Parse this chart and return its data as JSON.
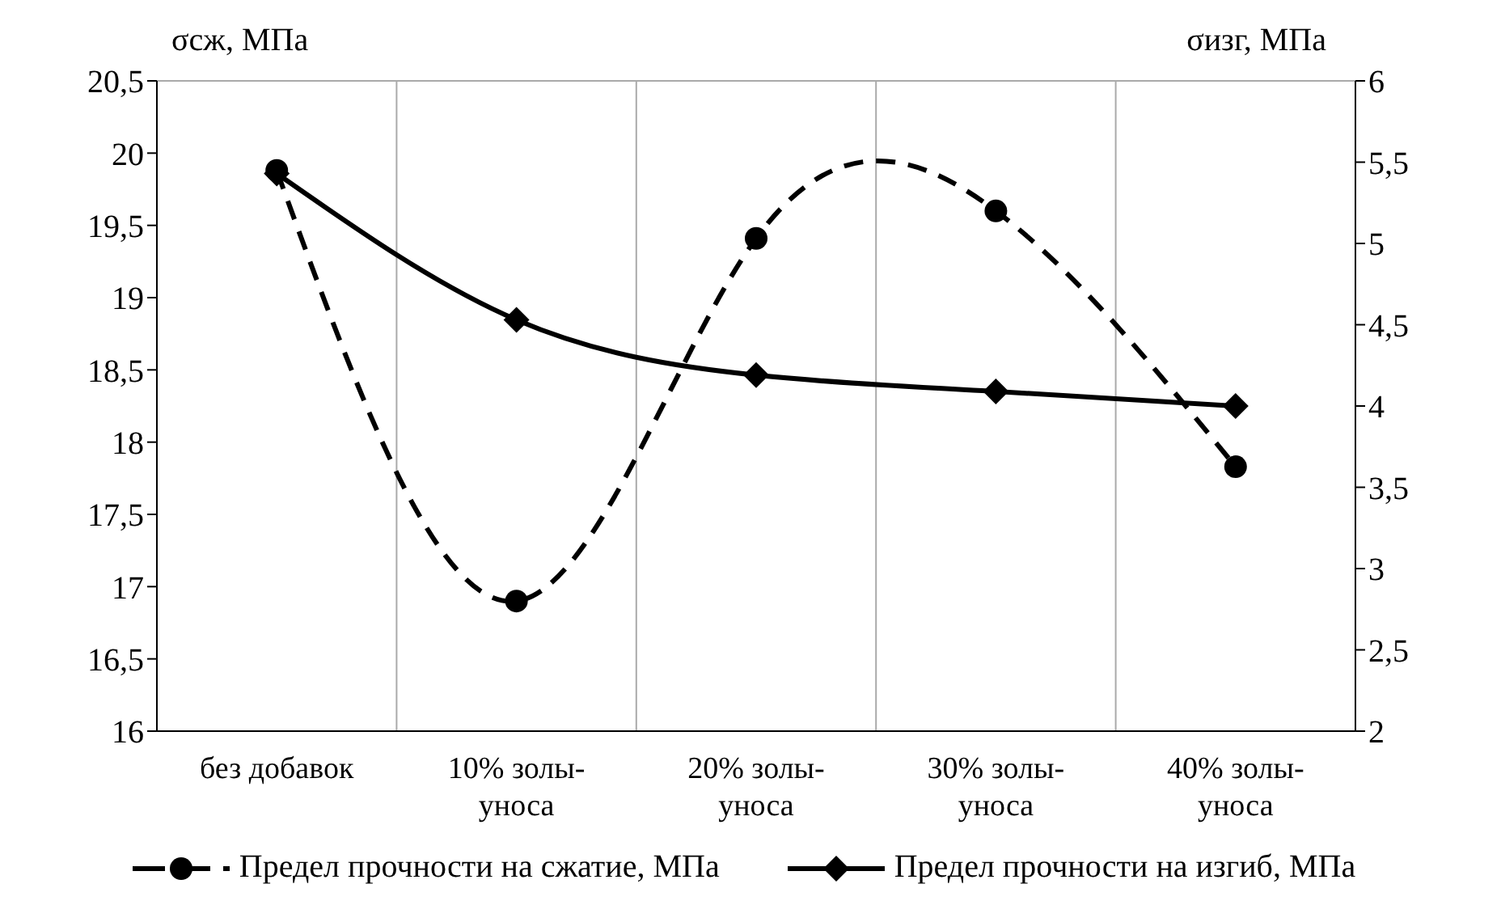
{
  "chart_data": {
    "type": "line",
    "ylabel": "σсж, МПа",
    "y2label": "σизг, МПа",
    "categories": [
      "без добавок",
      "10% золы-уноса",
      "20% золы-уноса",
      "30% золы-уноса",
      "40% золы-уноса"
    ],
    "series": [
      {
        "name": "Предел прочности на сжатие, МПа",
        "color": "#000000",
        "values": [
          19.88,
          16.9,
          19.41,
          19.6,
          17.83
        ],
        "line_style": "dashed",
        "marker": "circle"
      },
      {
        "name": "Предел прочности на изгиб, МПа",
        "color": "#000000",
        "values": [
          5.43,
          4.53,
          4.19,
          4.09,
          4.0
        ],
        "line_style": "solid",
        "marker": "diamond",
        "axis": "y2"
      }
    ],
    "ylim": [
      16,
      20.5
    ],
    "yticks": [
      {
        "value": 16,
        "label": "16"
      },
      {
        "value": 16.5,
        "label": "16,5"
      },
      {
        "value": 17,
        "label": "17"
      },
      {
        "value": 17.5,
        "label": "17,5"
      },
      {
        "value": 18,
        "label": "18"
      },
      {
        "value": 18.5,
        "label": "18,5"
      },
      {
        "value": 19,
        "label": "19"
      },
      {
        "value": 19.5,
        "label": "19,5"
      },
      {
        "value": 20,
        "label": "20"
      },
      {
        "value": 20.5,
        "label": "20,5"
      }
    ],
    "y2lim": [
      2,
      6
    ],
    "y2ticks": [
      {
        "value": 2,
        "label": "2"
      },
      {
        "value": 2.5,
        "label": "2,5"
      },
      {
        "value": 3,
        "label": "3"
      },
      {
        "value": 3.5,
        "label": "3,5"
      },
      {
        "value": 4,
        "label": "4"
      },
      {
        "value": 4.5,
        "label": "4,5"
      },
      {
        "value": 5,
        "label": "5"
      },
      {
        "value": 5.5,
        "label": "5,5"
      },
      {
        "value": 6,
        "label": "6"
      }
    ],
    "grid": true,
    "legend": "bottom"
  }
}
